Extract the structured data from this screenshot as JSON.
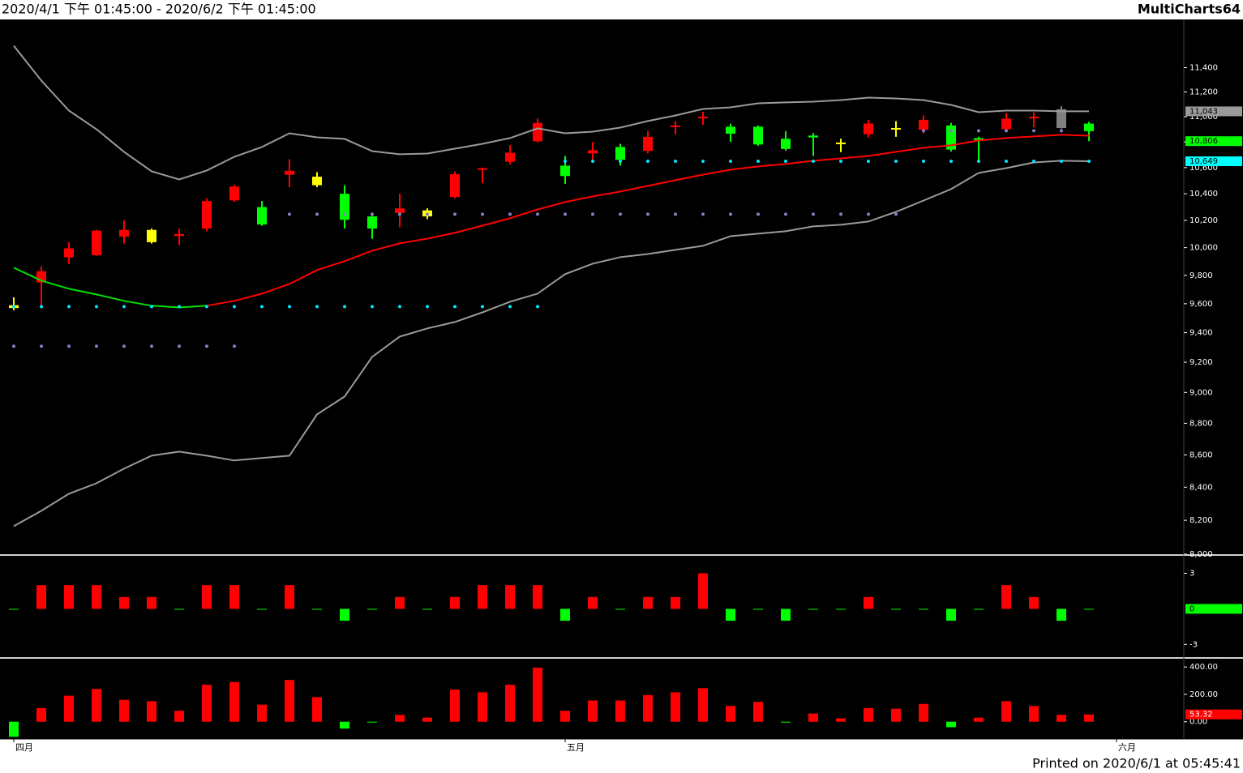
{
  "header": {
    "range": "2020/4/1 下午 01:45:00 - 2020/6/2 下午 01:45:00",
    "app": "MultiCharts64"
  },
  "footer": "Printed on 2020/6/1 at 05:45:41",
  "chart_data": [
    {
      "type": "candlestick",
      "log": true,
      "categories": [
        "四月",
        null,
        null,
        null,
        null,
        null,
        null,
        null,
        null,
        null,
        null,
        null,
        null,
        null,
        null,
        null,
        null,
        null,
        null,
        null,
        "五月",
        null,
        null,
        null,
        null,
        null,
        null,
        null,
        null,
        null,
        null,
        null,
        null,
        null,
        null,
        null,
        null,
        null,
        null,
        null,
        "六月"
      ],
      "open": [
        9590,
        9750,
        9930,
        9945,
        10080,
        10040,
        10085,
        10140,
        10350,
        10300,
        10545,
        10465,
        10400,
        10230,
        10255,
        10230,
        10375,
        10590,
        10645,
        10805,
        10615,
        10710,
        10760,
        10730,
        10920,
        10990,
        10920,
        10920,
        10825,
        10850,
        10795,
        10860,
        10910,
        10895,
        10930,
        10830,
        10900,
        10990,
        10910,
        10945,
        null
      ],
      "high": [
        9645,
        9865,
        10040,
        10130,
        10200,
        10140,
        10140,
        10365,
        10470,
        10345,
        10665,
        10565,
        10465,
        10235,
        10400,
        10290,
        10570,
        10600,
        10775,
        10985,
        10690,
        10800,
        10785,
        10885,
        10965,
        11040,
        10945,
        10930,
        10885,
        10870,
        10825,
        10975,
        10965,
        11010,
        10950,
        10840,
        11030,
        11035,
        11085,
        10960,
        null
      ],
      "low": [
        9555,
        9590,
        9880,
        9940,
        10030,
        10030,
        10020,
        10120,
        10340,
        10160,
        10450,
        10450,
        10140,
        10065,
        10150,
        10210,
        10365,
        10480,
        10625,
        10795,
        10475,
        10660,
        10615,
        10710,
        10860,
        10935,
        10800,
        10770,
        10730,
        10690,
        10720,
        10835,
        10840,
        10870,
        10725,
        10650,
        10885,
        10915,
        10905,
        10806,
        null
      ],
      "close": [
        9570,
        9830,
        9995,
        10125,
        10130,
        10130,
        10100,
        10345,
        10455,
        10170,
        10575,
        10530,
        10205,
        10140,
        10290,
        10275,
        10550,
        10595,
        10715,
        10950,
        10535,
        10735,
        10660,
        10840,
        10930,
        11000,
        10865,
        10780,
        10745,
        10835,
        10795,
        10945,
        10910,
        10975,
        10740,
        10815,
        10985,
        11000,
        11060,
        10885,
        null
      ],
      "colors": [
        "#ffff00",
        "#ff0000",
        "#ff0000",
        "#ff0000",
        "#ff0000",
        "#ffff00",
        "#ff0000",
        "#ff0000",
        "#ff0000",
        "#00ff00",
        "#ff0000",
        "#ffff00",
        "#00ff00",
        "#00ff00",
        "#ff0000",
        "#ffff00",
        "#ff0000",
        "#ff0000",
        "#ff0000",
        "#ff0000",
        "#00ff00",
        "#ff0000",
        "#00ff00",
        "#ff0000",
        "#ff0000",
        "#ff0000",
        "#00ff00",
        "#00ff00",
        "#00ff00",
        "#00ff00",
        "#ffff00",
        "#ff0000",
        "#ffff00",
        "#ff0000",
        "#00ff00",
        "#00ff00",
        "#ff0000",
        "#ff0000",
        "#808080",
        "#00ff00",
        null
      ],
      "series": [
        {
          "style": "line",
          "color": "#9a9a9a",
          "values": [
            11583,
            11293,
            11049,
            10900,
            10722,
            10571,
            10509,
            10578,
            10684,
            10760,
            10868,
            10836,
            10824,
            10728,
            10703,
            10709,
            10747,
            10785,
            10830,
            10907,
            10868,
            10881,
            10913,
            10965,
            11010,
            11062,
            11075,
            11108,
            11115,
            11121,
            11134,
            11154,
            11147,
            11134,
            11095,
            11036,
            11049,
            11049,
            11043,
            11043,
            null
          ]
        },
        {
          "style": "line",
          "color": "#9a9a9a",
          "values": [
            8165,
            8257,
            8360,
            8424,
            8514,
            8595,
            8620,
            8595,
            8565,
            8580,
            8595,
            8857,
            8973,
            9236,
            9373,
            9429,
            9473,
            9540,
            9614,
            9671,
            9809,
            9884,
            9931,
            9954,
            9984,
            10013,
            10084,
            10102,
            10120,
            10156,
            10168,
            10192,
            10264,
            10349,
            10435,
            10559,
            10596,
            10640,
            10653,
            10649,
            null
          ]
        },
        {
          "style": "line",
          "color": "#00e000",
          "values": [
            9855,
            9763,
            9705,
            9665,
            9620,
            9586,
            9574,
            9586,
            null,
            null,
            null,
            null,
            null,
            null,
            null,
            null,
            null,
            null,
            null,
            null,
            null,
            null,
            null,
            null,
            null,
            null,
            null,
            null,
            null,
            null,
            null,
            null,
            null,
            null,
            null,
            null,
            null,
            null,
            null,
            null,
            null
          ]
        },
        {
          "style": "line",
          "color": "#ff0000",
          "values": [
            null,
            null,
            null,
            null,
            null,
            null,
            null,
            9586,
            9620,
            9671,
            9739,
            9838,
            9902,
            9978,
            10031,
            10066,
            10108,
            10162,
            10216,
            10282,
            10337,
            10380,
            10417,
            10460,
            10503,
            10546,
            10584,
            10609,
            10628,
            10653,
            10671,
            10690,
            10722,
            10754,
            10773,
            10811,
            10830,
            10843,
            10856,
            10849,
            null
          ]
        },
        {
          "style": "dots",
          "color": "#00e5ff",
          "values": [
            9580,
            9580,
            9580,
            9580,
            9580,
            9580,
            9580,
            9580,
            9580,
            9580,
            9580,
            9580,
            9580,
            9580,
            9580,
            9580,
            9580,
            9580,
            9580,
            9580,
            10649,
            10649,
            10649,
            10649,
            10649,
            10649,
            10649,
            10649,
            10649,
            10649,
            10649,
            10649,
            10649,
            10649,
            10649,
            10649,
            10649,
            10649,
            10649,
            10649,
            null
          ]
        },
        {
          "style": "dots",
          "color": "#8080c8",
          "values": [
            9308,
            9308,
            9308,
            9308,
            9308,
            9308,
            9308,
            9308,
            9308,
            null,
            10246,
            10246,
            10246,
            10246,
            10246,
            10246,
            10246,
            10246,
            10246,
            10246,
            10246,
            10246,
            10246,
            10246,
            10246,
            10246,
            10246,
            10246,
            10246,
            10246,
            10246,
            10246,
            10246,
            10888,
            10888,
            10888,
            10888,
            10888,
            10888,
            null,
            null
          ]
        }
      ],
      "ylim": [
        8000,
        11800
      ],
      "yticks": [
        {
          "value": 8000,
          "label": "8,000"
        },
        {
          "value": 8200,
          "label": "8,200"
        },
        {
          "value": 8400,
          "label": "8,400"
        },
        {
          "value": 8600,
          "label": "8,600"
        },
        {
          "value": 8800,
          "label": "8,800"
        },
        {
          "value": 9000,
          "label": "9,000"
        },
        {
          "value": 9200,
          "label": "9,200"
        },
        {
          "value": 9400,
          "label": "9,400"
        },
        {
          "value": 9600,
          "label": "9,600"
        },
        {
          "value": 9800,
          "label": "9,800"
        },
        {
          "value": 10000,
          "label": "10,000"
        },
        {
          "value": 10200,
          "label": "10,200"
        },
        {
          "value": 10400,
          "label": "10,400"
        },
        {
          "value": 10600,
          "label": "10,600"
        },
        {
          "value": 10800,
          "label": "10,800"
        },
        {
          "value": 11000,
          "label": "11,000"
        },
        {
          "value": 11200,
          "label": "11,200"
        },
        {
          "value": 11400,
          "label": "11,400"
        }
      ],
      "markers": [
        {
          "value": 11043,
          "label": "11,043",
          "color": "#9a9a9a"
        },
        {
          "value": 10806,
          "label": "10,806",
          "color": "#00ff00"
        },
        {
          "value": 10649,
          "label": "10,649",
          "color": "#00ffff"
        }
      ]
    },
    {
      "type": "bar",
      "up_color": "#ff0000",
      "down_color": "#00ff00",
      "values": [
        0,
        2,
        2,
        2,
        1,
        1,
        0,
        2,
        2,
        0,
        2,
        0,
        -1,
        0,
        1,
        0,
        1,
        2,
        2,
        2,
        -1,
        1,
        0,
        1,
        1,
        3,
        -1,
        0,
        -1,
        0,
        0,
        1,
        0,
        0,
        -1,
        0,
        2,
        1,
        -1,
        0,
        null
      ],
      "ylim": [
        -4,
        4.4
      ],
      "yticks": [
        -3,
        3
      ]
    },
    {
      "type": "bar",
      "up_color": "#ff0000",
      "down_color": "#00ff00",
      "values": [
        -110,
        100,
        190,
        240,
        160,
        150,
        80,
        270,
        290,
        125,
        305,
        180,
        -50,
        0,
        50,
        30,
        235,
        215,
        270,
        395,
        80,
        155,
        155,
        195,
        215,
        245,
        115,
        145,
        -3,
        60,
        25,
        100,
        95,
        130,
        -40,
        30,
        150,
        115,
        50,
        53.32,
        null
      ],
      "ylim": [
        -120,
        460
      ],
      "yticks": [
        {
          "value": 0,
          "label": "0.00"
        },
        {
          "value": 200,
          "label": "200.00"
        },
        {
          "value": 400,
          "label": "400.00"
        }
      ]
    }
  ]
}
